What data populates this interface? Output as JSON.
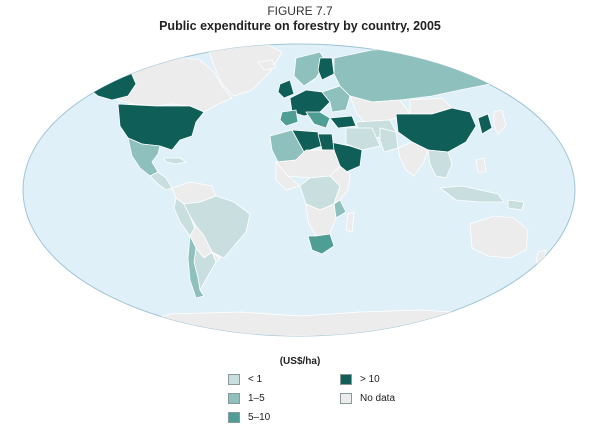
{
  "figure": {
    "label": "FIGURE 7.7",
    "title": "Public expenditure on forestry by country, 2005"
  },
  "colors": {
    "ocean": "#dff0f8",
    "ocean_border": "#9fc4d6",
    "no_data": "#ececec",
    "lt1": "#c9dfdf",
    "1to5": "#8ec0bd",
    "5to10": "#4e9e96",
    "gt10": "#0f5e57",
    "country_border": "#ffffff"
  },
  "legend": {
    "title": "(US$/ha)",
    "items": [
      {
        "label": "< 1",
        "color_key": "lt1"
      },
      {
        "label": "1–5",
        "color_key": "1to5"
      },
      {
        "label": "5–10",
        "color_key": "5to10"
      },
      {
        "label": "> 10",
        "color_key": "gt10"
      },
      {
        "label": "No data",
        "color_key": "no_data"
      }
    ]
  }
}
